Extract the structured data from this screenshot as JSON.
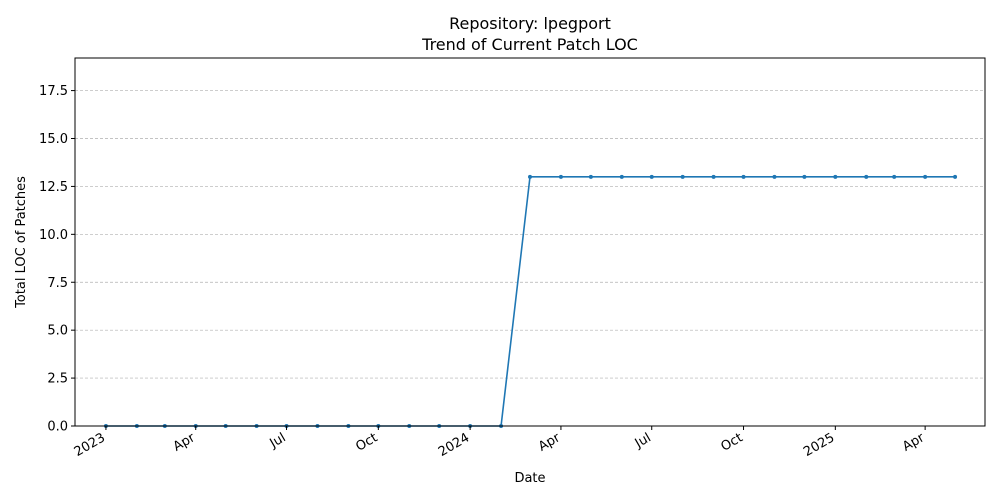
{
  "chart_data": {
    "type": "line",
    "title": "Repository: lpegport",
    "subtitle": "Trend of Current Patch LOC",
    "xlabel": "Date",
    "ylabel": "Total LOC of Patches",
    "xlim": [
      "2022-12-01",
      "2025-05-31"
    ],
    "ylim": [
      0,
      19.2
    ],
    "grid": "y-dashed",
    "x_ticks": [
      {
        "date": "2023-01-01",
        "label": "2023"
      },
      {
        "date": "2023-04-01",
        "label": "Apr"
      },
      {
        "date": "2023-07-01",
        "label": "Jul"
      },
      {
        "date": "2023-10-01",
        "label": "Oct"
      },
      {
        "date": "2024-01-01",
        "label": "2024"
      },
      {
        "date": "2024-04-01",
        "label": "Apr"
      },
      {
        "date": "2024-07-01",
        "label": "Jul"
      },
      {
        "date": "2024-10-01",
        "label": "Oct"
      },
      {
        "date": "2025-01-01",
        "label": "2025"
      },
      {
        "date": "2025-04-01",
        "label": "Apr"
      }
    ],
    "y_ticks": [
      "0.0",
      "2.5",
      "5.0",
      "7.5",
      "10.0",
      "12.5",
      "15.0",
      "17.5"
    ],
    "series": [
      {
        "color": "#1f77b4",
        "x": [
          "2023-01-01",
          "2023-02-01",
          "2023-03-01",
          "2023-04-01",
          "2023-05-01",
          "2023-06-01",
          "2023-07-01",
          "2023-08-01",
          "2023-09-01",
          "2023-10-01",
          "2023-11-01",
          "2023-12-01",
          "2024-01-01",
          "2024-02-01",
          "2024-03-01",
          "2024-04-01",
          "2024-05-01",
          "2024-06-01",
          "2024-07-01",
          "2024-08-01",
          "2024-09-01",
          "2024-10-01",
          "2024-11-01",
          "2024-12-01",
          "2025-01-01",
          "2025-02-01",
          "2025-03-01",
          "2025-04-01",
          "2025-05-01"
        ],
        "values": [
          0,
          0,
          0,
          0,
          0,
          0,
          0,
          0,
          0,
          0,
          0,
          0,
          0,
          0,
          13,
          13,
          13,
          13,
          13,
          13,
          13,
          13,
          13,
          13,
          13,
          13,
          13,
          13,
          13
        ]
      }
    ]
  }
}
